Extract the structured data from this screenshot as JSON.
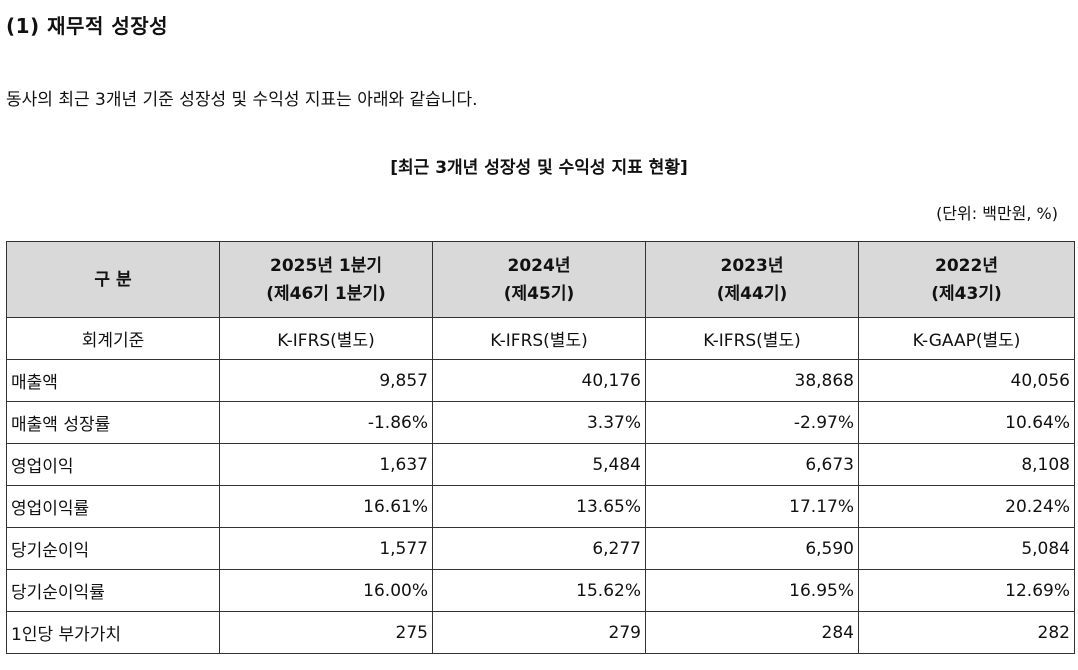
{
  "section_title": "(1) 재무적 성장성",
  "intro": "동사의 최근 3개년 기준 성장성 및 수익성 지표는 아래와 같습니다.",
  "table_title": "[최근 3개년 성장성 및 수익성 지표 현황]",
  "unit": "(단위: 백만원, %)",
  "header": {
    "category": "구 분",
    "columns": [
      {
        "line1": "2025년 1분기",
        "line2": "(제46기 1분기)"
      },
      {
        "line1": "2024년",
        "line2": "(제45기)"
      },
      {
        "line1": "2023년",
        "line2": "(제44기)"
      },
      {
        "line1": "2022년",
        "line2": "(제43기)"
      }
    ]
  },
  "rows": [
    {
      "label": "회계기준",
      "values": [
        "K-IFRS(별도)",
        "K-IFRS(별도)",
        "K-IFRS(별도)",
        "K-GAAP(별도)"
      ]
    },
    {
      "label": "매출액",
      "values": [
        "9,857",
        "40,176",
        "38,868",
        "40,056"
      ]
    },
    {
      "label": "매출액 성장률",
      "values": [
        "-1.86%",
        "3.37%",
        "-2.97%",
        "10.64%"
      ]
    },
    {
      "label": "영업이익",
      "values": [
        "1,637",
        "5,484",
        "6,673",
        "8,108"
      ]
    },
    {
      "label": "영업이익률",
      "values": [
        "16.61%",
        "13.65%",
        "17.17%",
        "20.24%"
      ]
    },
    {
      "label": "당기순이익",
      "values": [
        "1,577",
        "6,277",
        "6,590",
        "5,084"
      ]
    },
    {
      "label": "당기순이익률",
      "values": [
        "16.00%",
        "15.62%",
        "16.95%",
        "12.69%"
      ]
    },
    {
      "label": "1인당 부가가치",
      "values": [
        "275",
        "279",
        "284",
        "282"
      ]
    }
  ]
}
